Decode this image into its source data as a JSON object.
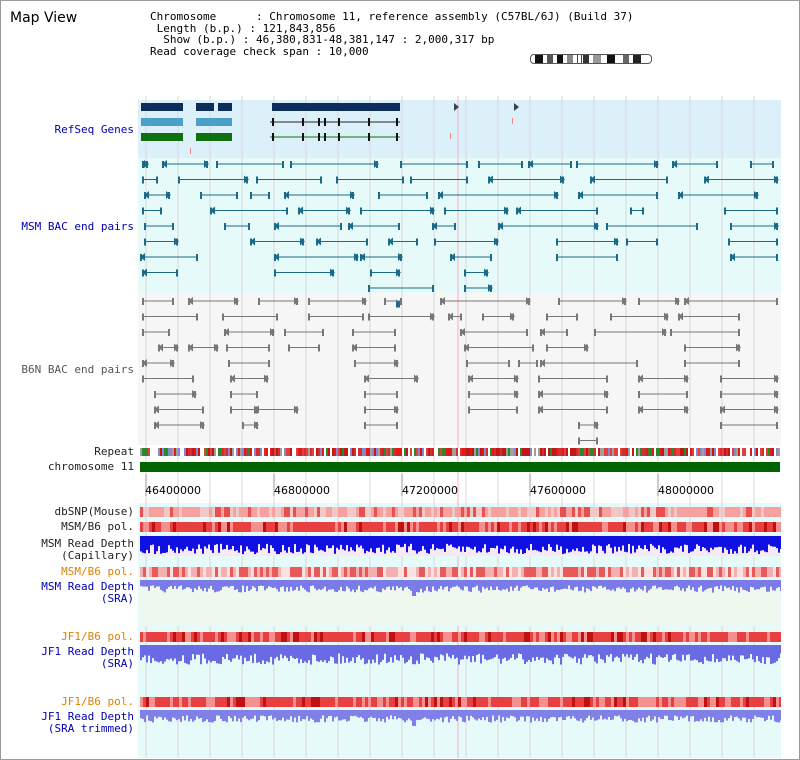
{
  "header": {
    "title": "Map View",
    "chromosome_label": "Chromosome",
    "chromosome_value": "Chromosome 11, reference assembly (C57BL/6J) (Build 37)",
    "length_label": "Length (b.p.)",
    "length_value": "121,843,856",
    "show_label": "Show (b.p.)",
    "show_value": "46,380,831-48,381,147 : 2,000,317 bp",
    "coverage_label": "Read coverage check span",
    "coverage_value": "10,000"
  },
  "tracks": {
    "refseq": "RefSeq Genes",
    "msm_bac": "MSM BAC end pairs",
    "b6n_bac": "B6N BAC end pairs",
    "repeat": "Repeat",
    "chromosome": "chromosome 11",
    "dbsnp": "dbSNP(Mouse)",
    "msm_b6_pol": "MSM/B6 pol.",
    "msm_depth_cap_1": "MSM Read Depth",
    "msm_depth_cap_2": "(Capillary)",
    "msm_b6_pol_2": "MSM/B6 pol.",
    "msm_depth_sra_1": "MSM Read Depth",
    "msm_depth_sra_2": "(SRA)",
    "jf1_b6_pol": "JF1/B6 pol.",
    "jf1_depth_sra_1": "JF1 Read Depth",
    "jf1_depth_sra_2": "(SRA)",
    "jf1_b6_pol_2": "JF1/B6 pol.",
    "jf1_depth_trim_1": "JF1 Read Depth",
    "jf1_depth_trim_2": "(SRA trimmed)"
  },
  "axis": {
    "ticks": [
      "46400000",
      "46800000",
      "47200000",
      "47600000",
      "48000000"
    ]
  },
  "colors": {
    "refseq_bg": "#dcf0fa",
    "msm_bg": "#e6fafa",
    "b6n_bg": "#f6f6f6",
    "chrom": "#006400",
    "msm_depth": "#1010e0",
    "sra_depth": "#7a7ae8",
    "pol_red": "#e83a3a",
    "track_blue": "#0000b0",
    "orange": "#e08000"
  }
}
